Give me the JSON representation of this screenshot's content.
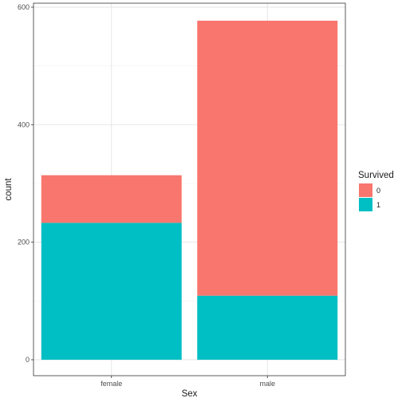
{
  "chart_data": {
    "type": "bar",
    "stacked": true,
    "categories": [
      "female",
      "male"
    ],
    "series": [
      {
        "name": "0",
        "values": [
          81,
          468
        ],
        "color": "#F8766D"
      },
      {
        "name": "1",
        "values": [
          233,
          109
        ],
        "color": "#00BFC4"
      }
    ],
    "xlabel": "Sex",
    "ylabel": "count",
    "ylim": [
      0,
      600
    ],
    "yticks": [
      0,
      200,
      400,
      600
    ],
    "grid": true,
    "legend": {
      "title": "Survived",
      "placement": "right"
    }
  }
}
